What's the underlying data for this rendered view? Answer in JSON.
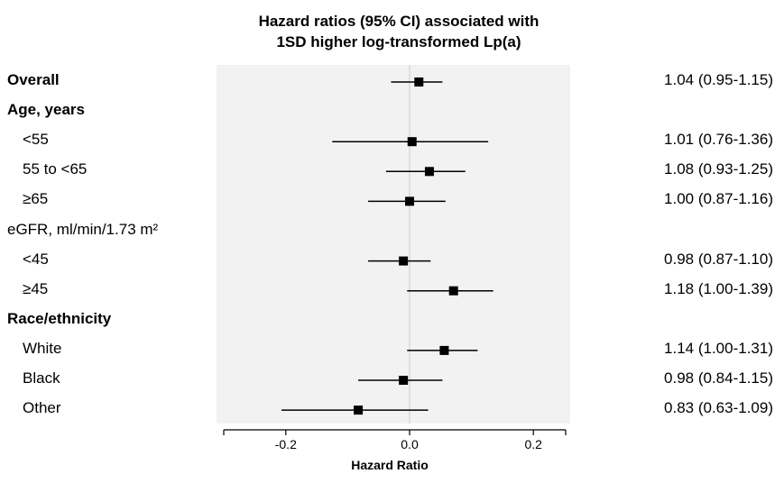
{
  "chart_data": {
    "type": "forest",
    "title_lines": [
      "Hazard ratios (95% CI) associated with",
      "1SD higher log-transformed Lp(a)"
    ],
    "xlabel": "Hazard Ratio",
    "xlim": [
      -0.3,
      0.25
    ],
    "xticks": [
      -0.2,
      0.0,
      0.2
    ],
    "xtick_labels": [
      "-0.2",
      "0.0",
      "0.2"
    ],
    "reference_line": 0.0,
    "panel_background": "#f2f2f2",
    "rows": [
      {
        "label": "Overall",
        "style": "bold",
        "est": 0.015,
        "lo": -0.03,
        "hi": 0.053,
        "value": "1.04 (0.95-1.15)"
      },
      {
        "label": "Age, years",
        "style": "bold",
        "value": ""
      },
      {
        "label": "<55",
        "style": "indent",
        "est": 0.004,
        "lo": -0.125,
        "hi": 0.127,
        "value": "1.01 (0.76-1.36)"
      },
      {
        "label": "55 to <65",
        "style": "indent",
        "est": 0.032,
        "lo": -0.038,
        "hi": 0.09,
        "value": "1.08 (0.93-1.25)"
      },
      {
        "label": "≥65",
        "style": "indent",
        "est": 0.0,
        "lo": -0.067,
        "hi": 0.058,
        "value": "1.00 (0.87-1.16)"
      },
      {
        "label": "eGFR, ml/min/1.73 m²",
        "style": "normal",
        "value": ""
      },
      {
        "label": "<45",
        "style": "indent",
        "est": -0.01,
        "lo": -0.067,
        "hi": 0.034,
        "value": "0.98 (0.87-1.10)"
      },
      {
        "label": "≥45",
        "style": "indent",
        "est": 0.071,
        "lo": -0.004,
        "hi": 0.135,
        "value": "1.18 (1.00-1.39)"
      },
      {
        "label": "Race/ethnicity",
        "style": "bold",
        "value": ""
      },
      {
        "label": "White",
        "style": "indent",
        "est": 0.056,
        "lo": -0.004,
        "hi": 0.11,
        "value": "1.14 (1.00-1.31)"
      },
      {
        "label": "Black",
        "style": "indent",
        "est": -0.01,
        "lo": -0.083,
        "hi": 0.053,
        "value": "0.98 (0.84-1.15)"
      },
      {
        "label": "Other",
        "style": "indent",
        "est": -0.083,
        "lo": -0.207,
        "hi": 0.03,
        "value": "0.83 (0.63-1.09)"
      }
    ]
  }
}
